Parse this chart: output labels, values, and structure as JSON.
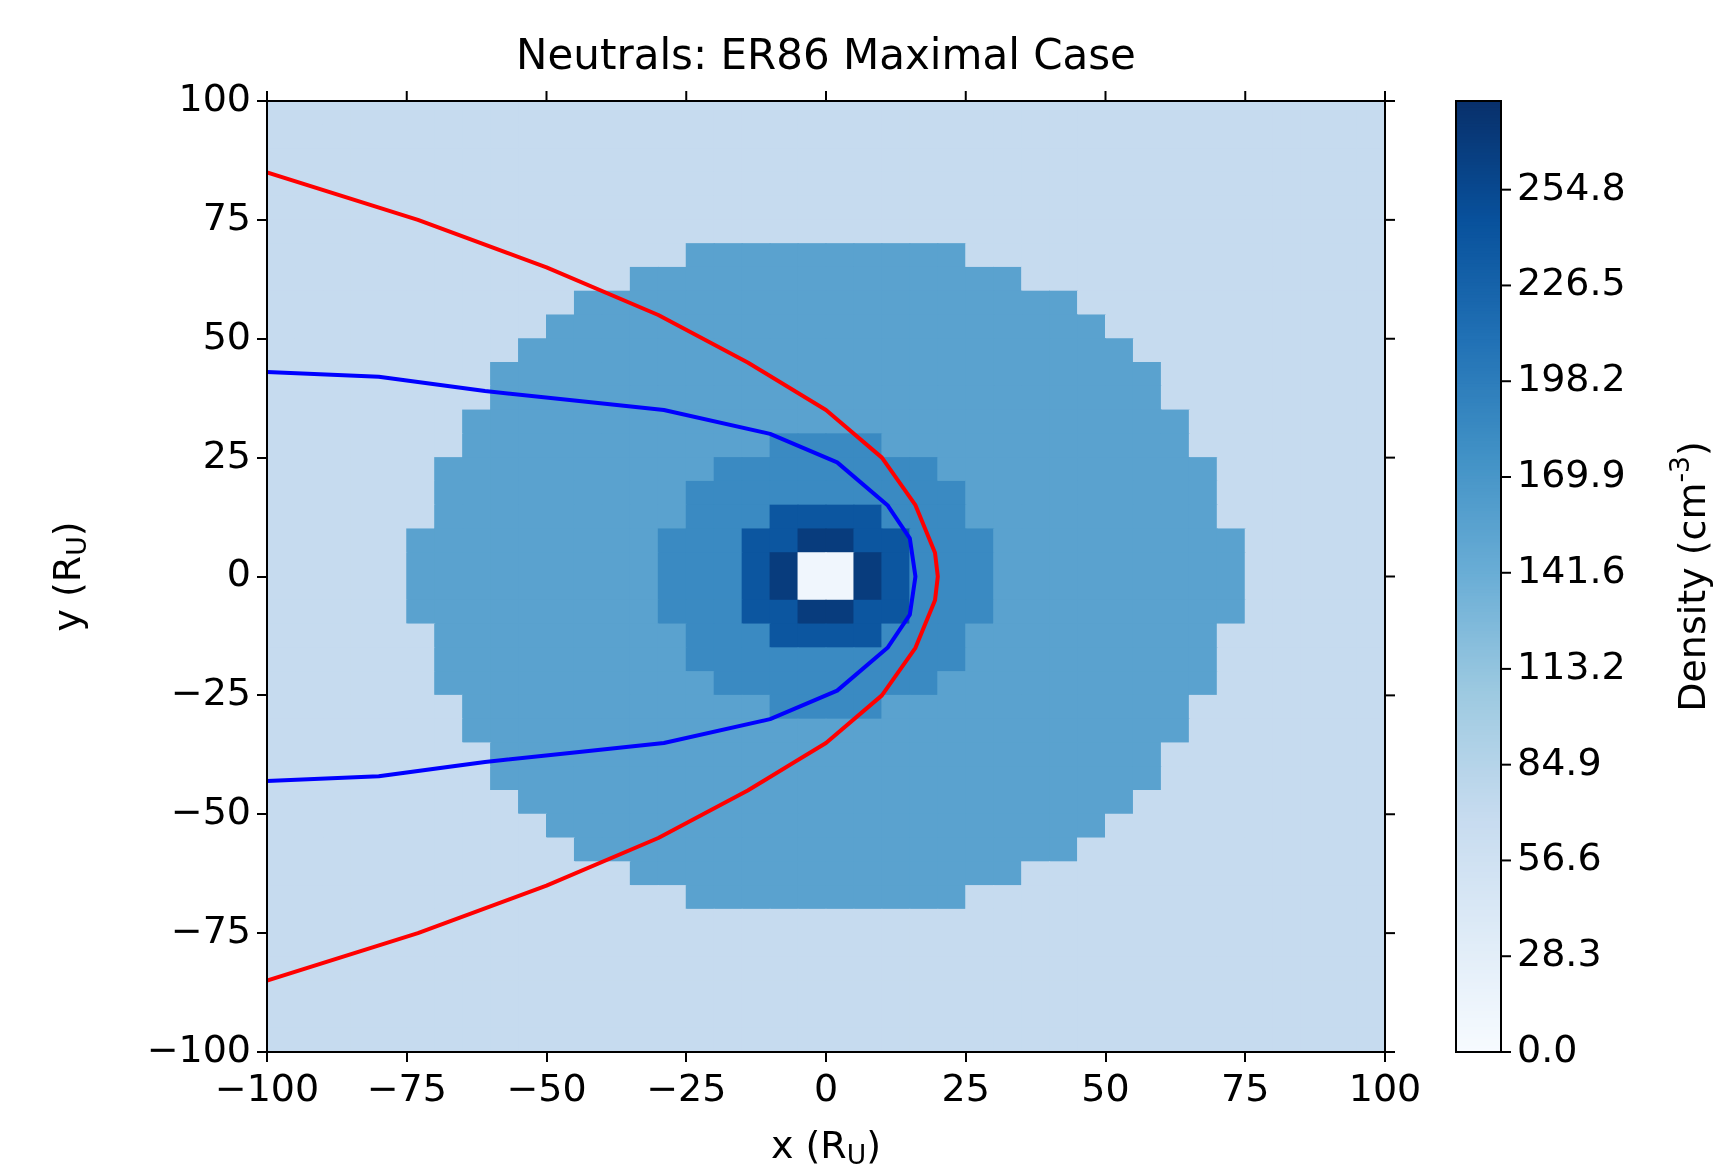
{
  "chart_data": [
    {
      "type": "heatmap",
      "title": "Neutrals: ER86 Maximal Case",
      "clabel": "Density (cm$^{-3}$)",
      "categories": [
        null,
        null,
        null,
        null,
        null,
        null,
        null,
        null,
        null,
        null,
        null,
        null,
        null,
        null,
        null,
        null,
        null,
        null,
        null,
        null,
        null,
        null,
        null,
        null,
        null,
        null,
        null,
        null,
        null,
        null,
        null,
        null,
        null,
        null,
        null,
        null,
        null,
        null,
        null,
        null
      ],
      "y_categories": [
        null,
        null,
        null,
        null,
        null,
        null,
        null,
        null,
        null,
        null,
        null,
        null,
        null,
        null,
        null,
        null,
        null,
        null,
        null,
        null,
        null,
        null,
        null,
        null,
        null,
        null,
        null,
        null,
        null,
        null,
        null,
        null,
        null,
        null,
        null,
        null,
        null,
        null,
        null,
        null
      ],
      "cells": [
        [
          70,
          70,
          70,
          70,
          70,
          70,
          70,
          70,
          70,
          70,
          70,
          70,
          70,
          70,
          70,
          70,
          70,
          70,
          70,
          70,
          70,
          70,
          70,
          70,
          70,
          70,
          70,
          70,
          70,
          70,
          70,
          70,
          70,
          70,
          70,
          70,
          70,
          70,
          70,
          70
        ],
        [
          70,
          70,
          70,
          70,
          70,
          70,
          70,
          70,
          70,
          70,
          70,
          70,
          70,
          70,
          70,
          70,
          70,
          70,
          70,
          70,
          70,
          70,
          70,
          70,
          70,
          70,
          70,
          70,
          70,
          70,
          70,
          70,
          70,
          70,
          70,
          70,
          70,
          70,
          70,
          70
        ],
        [
          70,
          70,
          70,
          70,
          70,
          70,
          70,
          70,
          70,
          70,
          70,
          70,
          70,
          70,
          70,
          70,
          70,
          70,
          70,
          70,
          70,
          70,
          70,
          70,
          70,
          70,
          70,
          70,
          70,
          70,
          70,
          70,
          70,
          70,
          70,
          70,
          70,
          70,
          70,
          70
        ],
        [
          70,
          70,
          70,
          70,
          70,
          70,
          70,
          70,
          70,
          70,
          70,
          70,
          70,
          70,
          70,
          70,
          70,
          70,
          70,
          70,
          70,
          70,
          70,
          70,
          70,
          70,
          70,
          70,
          70,
          70,
          70,
          70,
          70,
          70,
          70,
          70,
          70,
          70,
          70,
          70
        ],
        [
          70,
          70,
          70,
          70,
          70,
          70,
          70,
          70,
          70,
          70,
          70,
          70,
          70,
          70,
          70,
          70,
          70,
          70,
          70,
          70,
          70,
          70,
          70,
          70,
          70,
          70,
          70,
          70,
          70,
          70,
          70,
          70,
          70,
          70,
          70,
          70,
          70,
          70,
          70,
          70
        ],
        [
          70,
          70,
          70,
          70,
          70,
          70,
          70,
          70,
          70,
          70,
          70,
          70,
          70,
          70,
          70,
          70,
          70,
          70,
          70,
          70,
          70,
          70,
          70,
          70,
          70,
          70,
          70,
          70,
          70,
          70,
          70,
          70,
          70,
          70,
          70,
          70,
          70,
          70,
          70,
          70
        ],
        [
          70,
          70,
          70,
          70,
          70,
          70,
          70,
          70,
          70,
          70,
          70,
          70,
          70,
          70,
          70,
          155,
          155,
          155,
          155,
          155,
          155,
          155,
          155,
          155,
          155,
          70,
          70,
          70,
          70,
          70,
          70,
          70,
          70,
          70,
          70,
          70,
          70,
          70,
          70,
          70
        ],
        [
          70,
          70,
          70,
          70,
          70,
          70,
          70,
          70,
          70,
          70,
          70,
          70,
          70,
          155,
          155,
          155,
          155,
          155,
          155,
          155,
          155,
          155,
          155,
          155,
          155,
          155,
          155,
          70,
          70,
          70,
          70,
          70,
          70,
          70,
          70,
          70,
          70,
          70,
          70,
          70
        ],
        [
          70,
          70,
          70,
          70,
          70,
          70,
          70,
          70,
          70,
          70,
          70,
          155,
          155,
          155,
          155,
          155,
          155,
          155,
          155,
          155,
          155,
          155,
          155,
          155,
          155,
          155,
          155,
          155,
          155,
          70,
          70,
          70,
          70,
          70,
          70,
          70,
          70,
          70,
          70,
          70
        ],
        [
          70,
          70,
          70,
          70,
          70,
          70,
          70,
          70,
          70,
          70,
          155,
          155,
          155,
          155,
          155,
          155,
          155,
          155,
          155,
          155,
          155,
          155,
          155,
          155,
          155,
          155,
          155,
          155,
          155,
          155,
          70,
          70,
          70,
          70,
          70,
          70,
          70,
          70,
          70,
          70
        ],
        [
          70,
          70,
          70,
          70,
          70,
          70,
          70,
          70,
          70,
          155,
          155,
          155,
          155,
          155,
          155,
          155,
          155,
          155,
          155,
          155,
          155,
          155,
          155,
          155,
          155,
          155,
          155,
          155,
          155,
          155,
          155,
          70,
          70,
          70,
          70,
          70,
          70,
          70,
          70,
          70
        ],
        [
          70,
          70,
          70,
          70,
          70,
          70,
          70,
          70,
          155,
          155,
          155,
          155,
          155,
          155,
          155,
          155,
          155,
          155,
          155,
          155,
          155,
          155,
          155,
          155,
          155,
          155,
          155,
          155,
          155,
          155,
          155,
          155,
          70,
          70,
          70,
          70,
          70,
          70,
          70,
          70
        ],
        [
          70,
          70,
          70,
          70,
          70,
          70,
          70,
          70,
          155,
          155,
          155,
          155,
          155,
          155,
          155,
          155,
          155,
          155,
          155,
          155,
          155,
          155,
          155,
          155,
          155,
          155,
          155,
          155,
          155,
          155,
          155,
          155,
          70,
          70,
          70,
          70,
          70,
          70,
          70,
          70
        ],
        [
          70,
          70,
          70,
          70,
          70,
          70,
          70,
          155,
          155,
          155,
          155,
          155,
          155,
          155,
          155,
          155,
          155,
          155,
          155,
          155,
          155,
          155,
          155,
          155,
          155,
          155,
          155,
          155,
          155,
          155,
          155,
          155,
          155,
          70,
          70,
          70,
          70,
          70,
          70,
          70
        ],
        [
          70,
          70,
          70,
          70,
          70,
          70,
          70,
          155,
          155,
          155,
          155,
          155,
          155,
          155,
          155,
          155,
          155,
          155,
          184,
          184,
          184,
          184,
          155,
          155,
          155,
          155,
          155,
          155,
          155,
          155,
          155,
          155,
          155,
          70,
          70,
          70,
          70,
          70,
          70,
          70
        ],
        [
          70,
          70,
          70,
          70,
          70,
          70,
          155,
          155,
          155,
          155,
          155,
          155,
          155,
          155,
          155,
          155,
          184,
          184,
          184,
          184,
          184,
          184,
          184,
          184,
          155,
          155,
          155,
          155,
          155,
          155,
          155,
          155,
          155,
          155,
          70,
          70,
          70,
          70,
          70,
          70
        ],
        [
          70,
          70,
          70,
          70,
          70,
          70,
          155,
          155,
          155,
          155,
          155,
          155,
          155,
          155,
          155,
          184,
          184,
          184,
          184,
          184,
          184,
          184,
          184,
          184,
          184,
          155,
          155,
          155,
          155,
          155,
          155,
          155,
          155,
          155,
          70,
          70,
          70,
          70,
          70,
          70
        ],
        [
          70,
          70,
          70,
          70,
          70,
          70,
          155,
          155,
          155,
          155,
          155,
          155,
          155,
          155,
          155,
          184,
          184,
          184,
          240,
          240,
          240,
          240,
          184,
          184,
          184,
          155,
          155,
          155,
          155,
          155,
          155,
          155,
          155,
          155,
          70,
          70,
          70,
          70,
          70,
          70
        ],
        [
          70,
          70,
          70,
          70,
          70,
          155,
          155,
          155,
          155,
          155,
          155,
          155,
          155,
          155,
          184,
          184,
          184,
          240,
          240,
          268,
          268,
          240,
          240,
          184,
          184,
          184,
          155,
          155,
          155,
          155,
          155,
          155,
          155,
          155,
          155,
          70,
          70,
          70,
          70,
          70
        ],
        [
          70,
          70,
          70,
          70,
          70,
          155,
          155,
          155,
          155,
          155,
          155,
          155,
          155,
          155,
          184,
          184,
          184,
          240,
          268,
          10,
          10,
          268,
          240,
          184,
          184,
          184,
          155,
          155,
          155,
          155,
          155,
          155,
          155,
          155,
          155,
          70,
          70,
          70,
          70,
          70
        ],
        [
          70,
          70,
          70,
          70,
          70,
          155,
          155,
          155,
          155,
          155,
          155,
          155,
          155,
          155,
          184,
          184,
          184,
          240,
          268,
          10,
          10,
          268,
          240,
          184,
          184,
          184,
          155,
          155,
          155,
          155,
          155,
          155,
          155,
          155,
          155,
          70,
          70,
          70,
          70,
          70
        ],
        [
          70,
          70,
          70,
          70,
          70,
          155,
          155,
          155,
          155,
          155,
          155,
          155,
          155,
          155,
          184,
          184,
          184,
          240,
          240,
          268,
          268,
          240,
          240,
          184,
          184,
          184,
          155,
          155,
          155,
          155,
          155,
          155,
          155,
          155,
          155,
          70,
          70,
          70,
          70,
          70
        ],
        [
          70,
          70,
          70,
          70,
          70,
          70,
          155,
          155,
          155,
          155,
          155,
          155,
          155,
          155,
          155,
          184,
          184,
          184,
          240,
          240,
          240,
          240,
          184,
          184,
          184,
          155,
          155,
          155,
          155,
          155,
          155,
          155,
          155,
          155,
          70,
          70,
          70,
          70,
          70,
          70
        ],
        [
          70,
          70,
          70,
          70,
          70,
          70,
          155,
          155,
          155,
          155,
          155,
          155,
          155,
          155,
          155,
          184,
          184,
          184,
          184,
          184,
          184,
          184,
          184,
          184,
          184,
          155,
          155,
          155,
          155,
          155,
          155,
          155,
          155,
          155,
          70,
          70,
          70,
          70,
          70,
          70
        ],
        [
          70,
          70,
          70,
          70,
          70,
          70,
          155,
          155,
          155,
          155,
          155,
          155,
          155,
          155,
          155,
          155,
          184,
          184,
          184,
          184,
          184,
          184,
          184,
          184,
          155,
          155,
          155,
          155,
          155,
          155,
          155,
          155,
          155,
          155,
          70,
          70,
          70,
          70,
          70,
          70
        ],
        [
          70,
          70,
          70,
          70,
          70,
          70,
          70,
          155,
          155,
          155,
          155,
          155,
          155,
          155,
          155,
          155,
          155,
          155,
          184,
          184,
          184,
          184,
          155,
          155,
          155,
          155,
          155,
          155,
          155,
          155,
          155,
          155,
          155,
          70,
          70,
          70,
          70,
          70,
          70,
          70
        ],
        [
          70,
          70,
          70,
          70,
          70,
          70,
          70,
          155,
          155,
          155,
          155,
          155,
          155,
          155,
          155,
          155,
          155,
          155,
          155,
          155,
          155,
          155,
          155,
          155,
          155,
          155,
          155,
          155,
          155,
          155,
          155,
          155,
          155,
          70,
          70,
          70,
          70,
          70,
          70,
          70
        ],
        [
          70,
          70,
          70,
          70,
          70,
          70,
          70,
          70,
          155,
          155,
          155,
          155,
          155,
          155,
          155,
          155,
          155,
          155,
          155,
          155,
          155,
          155,
          155,
          155,
          155,
          155,
          155,
          155,
          155,
          155,
          155,
          155,
          70,
          70,
          70,
          70,
          70,
          70,
          70,
          70
        ],
        [
          70,
          70,
          70,
          70,
          70,
          70,
          70,
          70,
          155,
          155,
          155,
          155,
          155,
          155,
          155,
          155,
          155,
          155,
          155,
          155,
          155,
          155,
          155,
          155,
          155,
          155,
          155,
          155,
          155,
          155,
          155,
          155,
          70,
          70,
          70,
          70,
          70,
          70,
          70,
          70
        ],
        [
          70,
          70,
          70,
          70,
          70,
          70,
          70,
          70,
          70,
          155,
          155,
          155,
          155,
          155,
          155,
          155,
          155,
          155,
          155,
          155,
          155,
          155,
          155,
          155,
          155,
          155,
          155,
          155,
          155,
          155,
          155,
          70,
          70,
          70,
          70,
          70,
          70,
          70,
          70,
          70
        ],
        [
          70,
          70,
          70,
          70,
          70,
          70,
          70,
          70,
          70,
          70,
          155,
          155,
          155,
          155,
          155,
          155,
          155,
          155,
          155,
          155,
          155,
          155,
          155,
          155,
          155,
          155,
          155,
          155,
          155,
          155,
          70,
          70,
          70,
          70,
          70,
          70,
          70,
          70,
          70,
          70
        ],
        [
          70,
          70,
          70,
          70,
          70,
          70,
          70,
          70,
          70,
          70,
          70,
          155,
          155,
          155,
          155,
          155,
          155,
          155,
          155,
          155,
          155,
          155,
          155,
          155,
          155,
          155,
          155,
          155,
          155,
          70,
          70,
          70,
          70,
          70,
          70,
          70,
          70,
          70,
          70,
          70
        ],
        [
          70,
          70,
          70,
          70,
          70,
          70,
          70,
          70,
          70,
          70,
          70,
          70,
          70,
          155,
          155,
          155,
          155,
          155,
          155,
          155,
          155,
          155,
          155,
          155,
          155,
          155,
          155,
          70,
          70,
          70,
          70,
          70,
          70,
          70,
          70,
          70,
          70,
          70,
          70,
          70
        ],
        [
          70,
          70,
          70,
          70,
          70,
          70,
          70,
          70,
          70,
          70,
          70,
          70,
          70,
          70,
          70,
          155,
          155,
          155,
          155,
          155,
          155,
          155,
          155,
          155,
          155,
          70,
          70,
          70,
          70,
          70,
          70,
          70,
          70,
          70,
          70,
          70,
          70,
          70,
          70,
          70
        ],
        [
          70,
          70,
          70,
          70,
          70,
          70,
          70,
          70,
          70,
          70,
          70,
          70,
          70,
          70,
          70,
          70,
          70,
          70,
          70,
          70,
          70,
          70,
          70,
          70,
          70,
          70,
          70,
          70,
          70,
          70,
          70,
          70,
          70,
          70,
          70,
          70,
          70,
          70,
          70,
          70
        ],
        [
          70,
          70,
          70,
          70,
          70,
          70,
          70,
          70,
          70,
          70,
          70,
          70,
          70,
          70,
          70,
          70,
          70,
          70,
          70,
          70,
          70,
          70,
          70,
          70,
          70,
          70,
          70,
          70,
          70,
          70,
          70,
          70,
          70,
          70,
          70,
          70,
          70,
          70,
          70,
          70
        ],
        [
          70,
          70,
          70,
          70,
          70,
          70,
          70,
          70,
          70,
          70,
          70,
          70,
          70,
          70,
          70,
          70,
          70,
          70,
          70,
          70,
          70,
          70,
          70,
          70,
          70,
          70,
          70,
          70,
          70,
          70,
          70,
          70,
          70,
          70,
          70,
          70,
          70,
          70,
          70,
          70
        ],
        [
          70,
          70,
          70,
          70,
          70,
          70,
          70,
          70,
          70,
          70,
          70,
          70,
          70,
          70,
          70,
          70,
          70,
          70,
          70,
          70,
          70,
          70,
          70,
          70,
          70,
          70,
          70,
          70,
          70,
          70,
          70,
          70,
          70,
          70,
          70,
          70,
          70,
          70,
          70,
          70
        ],
        [
          70,
          70,
          70,
          70,
          70,
          70,
          70,
          70,
          70,
          70,
          70,
          70,
          70,
          70,
          70,
          70,
          70,
          70,
          70,
          70,
          70,
          70,
          70,
          70,
          70,
          70,
          70,
          70,
          70,
          70,
          70,
          70,
          70,
          70,
          70,
          70,
          70,
          70,
          70,
          70
        ],
        [
          70,
          70,
          70,
          70,
          70,
          70,
          70,
          70,
          70,
          70,
          70,
          70,
          70,
          70,
          70,
          70,
          70,
          70,
          70,
          70,
          70,
          70,
          70,
          70,
          70,
          70,
          70,
          70,
          70,
          70,
          70,
          70,
          70,
          70,
          70,
          70,
          70,
          70,
          70,
          70
        ]
      ],
      "clim": [
        0,
        281
      ],
      "cticks": [
        {
          "value": 0,
          "label": "0.0"
        },
        28.3,
        56.6,
        84.9,
        113.2,
        141.6,
        169.9,
        198.2,
        226.5,
        254.8
      ]
    },
    {
      "type": "line",
      "xlabel": "x (R$_{U}$)",
      "ylabel": "y (R$_{U}$)",
      "xlim": [
        -100,
        100
      ],
      "xticks": [
        -100,
        -75,
        -50,
        -25,
        0,
        25,
        50,
        75,
        100
      ],
      "ylim": [
        -100,
        100
      ],
      "yticks": [
        -100,
        -75,
        -50,
        -25,
        0,
        25,
        50,
        75,
        100
      ],
      "series": [
        {
          "type": "line",
          "color": "#ff0000",
          "x": [
            -100,
            -73,
            -50,
            -30,
            -14,
            0,
            10,
            16,
            19.5,
            20,
            19.5,
            16,
            10,
            0,
            -14,
            -30,
            -50,
            -73,
            -100
          ],
          "values": [
            85,
            75,
            65,
            55,
            45,
            35,
            25,
            15,
            5,
            0,
            -5,
            -15,
            -25,
            -35,
            -45,
            -55,
            -65,
            -75,
            -85
          ]
        },
        {
          "type": "line",
          "color": "#0000ff",
          "x": [
            -100,
            -80,
            -61,
            -45,
            -29,
            -10,
            2,
            11,
            15,
            16,
            15,
            11,
            2,
            -10,
            -29,
            -45,
            -61,
            -80,
            -100
          ],
          "values": [
            43,
            42,
            39,
            37,
            35,
            30,
            24,
            15,
            8,
            0,
            -8,
            -15,
            -24,
            -30,
            -35,
            -37,
            -39,
            -42,
            -43
          ]
        }
      ],
      "marker": "none"
    }
  ]
}
